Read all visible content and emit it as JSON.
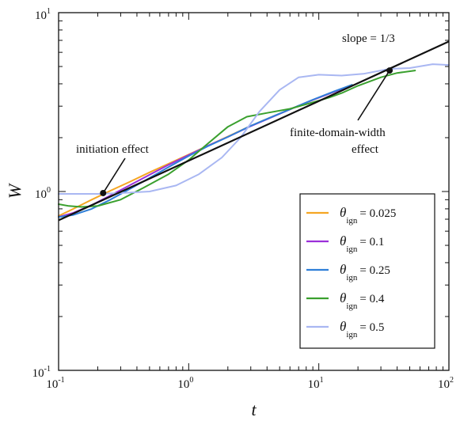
{
  "chart_data": {
    "type": "line",
    "xlabel": "t",
    "ylabel": "W",
    "xscale": "log",
    "yscale": "log",
    "xlim": [
      0.1,
      100
    ],
    "ylim": [
      0.1,
      10
    ],
    "xticks": [
      {
        "base": "10",
        "exp": "-1"
      },
      {
        "base": "10",
        "exp": "0"
      },
      {
        "base": "10",
        "exp": "1"
      },
      {
        "base": "10",
        "exp": "2"
      }
    ],
    "yticks": [
      {
        "base": "10",
        "exp": "-1"
      },
      {
        "base": "10",
        "exp": "0"
      },
      {
        "base": "10",
        "exp": "1"
      }
    ],
    "grid": false,
    "legend_position": "bottom-right",
    "series": [
      {
        "name_symbol": "θ",
        "name_sub": "ign",
        "name_value": "= 0.025",
        "color": "#f5a623",
        "x": [
          0.1,
          0.13,
          0.18,
          0.25,
          0.35,
          0.5,
          0.7,
          1.0,
          1.4,
          2.0,
          3.0,
          4.5,
          6.5,
          9.0,
          13,
          18
        ],
        "y": [
          0.73,
          0.8,
          0.9,
          1.01,
          1.13,
          1.28,
          1.43,
          1.61,
          1.8,
          2.03,
          2.33,
          2.64,
          2.95,
          3.25,
          3.6,
          3.95
        ]
      },
      {
        "name_symbol": "θ",
        "name_sub": "ign",
        "name_value": "= 0.1",
        "color": "#9b30d9",
        "x": [
          0.1,
          0.13,
          0.18,
          0.25,
          0.35,
          0.5,
          0.7,
          1.0,
          1.4,
          2.0,
          3.0,
          4.5,
          6.5,
          9.0,
          13,
          18
        ],
        "y": [
          0.72,
          0.76,
          0.84,
          0.95,
          1.08,
          1.24,
          1.41,
          1.6,
          1.8,
          2.02,
          2.32,
          2.63,
          2.95,
          3.25,
          3.6,
          3.9
        ]
      },
      {
        "name_symbol": "θ",
        "name_sub": "ign",
        "name_value": "= 0.25",
        "color": "#2f7fd8",
        "x": [
          0.1,
          0.13,
          0.18,
          0.25,
          0.35,
          0.5,
          0.7,
          1.0,
          1.4,
          2.0,
          3.0,
          4.5,
          6.5,
          9.0,
          13,
          18
        ],
        "y": [
          0.72,
          0.74,
          0.8,
          0.9,
          1.03,
          1.19,
          1.37,
          1.58,
          1.79,
          2.02,
          2.33,
          2.64,
          2.95,
          3.26,
          3.62,
          3.95
        ]
      },
      {
        "name_symbol": "θ",
        "name_sub": "ign",
        "name_value": "= 0.4",
        "color": "#3aa02e",
        "x": [
          0.1,
          0.12,
          0.15,
          0.2,
          0.3,
          0.45,
          0.7,
          1.0,
          1.4,
          2.0,
          2.8,
          4.0,
          6.0,
          9.0,
          12,
          15,
          20,
          30,
          40,
          55
        ],
        "y": [
          0.85,
          0.83,
          0.82,
          0.83,
          0.9,
          1.05,
          1.25,
          1.5,
          1.85,
          2.3,
          2.62,
          2.75,
          2.9,
          3.15,
          3.35,
          3.55,
          3.9,
          4.35,
          4.6,
          4.75
        ]
      },
      {
        "name_symbol": "θ",
        "name_sub": "ign",
        "name_value": "= 0.5",
        "color": "#a9b7f2",
        "x": [
          0.1,
          0.15,
          0.2,
          0.3,
          0.5,
          0.8,
          1.2,
          1.8,
          2.5,
          3.5,
          5.0,
          7.0,
          10,
          15,
          22,
          35,
          50,
          75,
          100
        ],
        "y": [
          0.97,
          0.97,
          0.97,
          0.98,
          1.0,
          1.08,
          1.25,
          1.55,
          2.0,
          2.8,
          3.7,
          4.35,
          4.5,
          4.45,
          4.55,
          4.85,
          4.9,
          5.15,
          5.1
        ]
      }
    ],
    "fit_line": {
      "label": "slope = 1/3",
      "color": "#111111",
      "x": [
        0.1,
        100
      ],
      "y": [
        0.69,
        6.9
      ]
    },
    "annotations": [
      {
        "lines": [
          "initiation effect"
        ],
        "point": {
          "x": 0.22,
          "y": 0.98
        }
      },
      {
        "lines": [
          "finite-domain-width",
          "effect"
        ],
        "point": {
          "x": 35,
          "y": 4.75
        }
      }
    ]
  }
}
